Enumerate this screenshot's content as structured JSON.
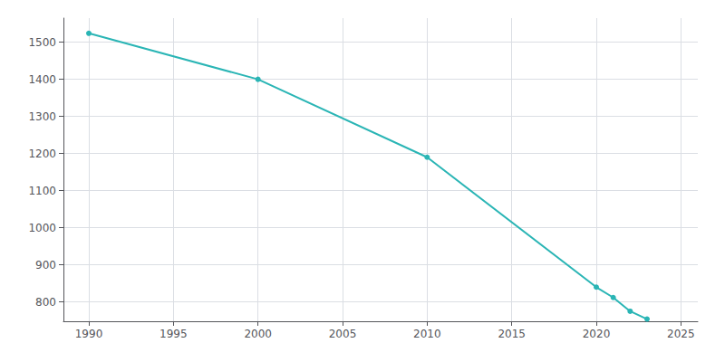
{
  "chart_data": {
    "type": "line",
    "x": [
      1990,
      2000,
      2010,
      2020,
      2021,
      2022,
      2023
    ],
    "values": [
      1524,
      1400,
      1190,
      840,
      812,
      775,
      754
    ],
    "color": "#2ab5b5",
    "marker": "circle",
    "xlim": [
      1988.5,
      2026
    ],
    "ylim": [
      748,
      1565
    ],
    "xticks": [
      1990,
      1995,
      2000,
      2005,
      2010,
      2015,
      2020,
      2025
    ],
    "yticks": [
      800,
      900,
      1000,
      1100,
      1200,
      1300,
      1400,
      1500
    ],
    "grid": true
  }
}
